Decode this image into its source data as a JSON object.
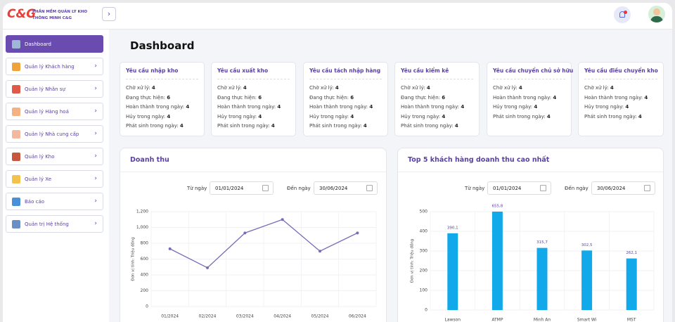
{
  "sidebar": {
    "logo": "C&G",
    "brand": [
      "PHẦN MỀM QUẢN LÝ KHO",
      "THÔNG MINH C&G"
    ],
    "menu": [
      "Dashboard",
      "Quản lý Khách hàng",
      "Quản lý Nhân sự",
      "Quản lý Hàng hoá",
      "Quản lý Nhà cung cấp",
      "Quản lý Kho",
      "Quản lý Xe",
      "Báo cáo",
      "Quản trị Hệ thống"
    ]
  },
  "page_title": "Dashboard",
  "cards": [
    {
      "title": "Yêu cầu nhập kho",
      "rows": [
        {
          "label": "Chờ xử lý:",
          "value": 4
        },
        {
          "label": "Đang thực hiện:",
          "value": 6
        },
        {
          "label": "Hoàn thành trong ngày:",
          "value": 4
        },
        {
          "label": "Hủy trong ngày:",
          "value": 4
        },
        {
          "label": "Phát sinh trong ngày:",
          "value": 4
        }
      ]
    },
    {
      "title": "Yêu cầu xuất kho",
      "rows": [
        {
          "label": "Chờ xử lý:",
          "value": 4
        },
        {
          "label": "Đang thực hiện:",
          "value": 6
        },
        {
          "label": "Hoàn thành trong ngày:",
          "value": 4
        },
        {
          "label": "Hủy trong ngày:",
          "value": 4
        },
        {
          "label": "Phát sinh trong ngày:",
          "value": 4
        }
      ]
    },
    {
      "title": "Yêu cầu tách nhập hàng",
      "rows": [
        {
          "label": "Chờ xử lý:",
          "value": 4
        },
        {
          "label": "Đang thực hiện:",
          "value": 6
        },
        {
          "label": "Hoàn thành trong ngày:",
          "value": 4
        },
        {
          "label": "Hủy trong ngày:",
          "value": 4
        },
        {
          "label": "Phát sinh trong ngày:",
          "value": 4
        }
      ]
    },
    {
      "title": "Yêu cầu kiểm kê",
      "rows": [
        {
          "label": "Chờ xử lý:",
          "value": 4
        },
        {
          "label": "Đang thực hiện:",
          "value": 6
        },
        {
          "label": "Hoàn thành trong ngày:",
          "value": 4
        },
        {
          "label": "Hủy trong ngày:",
          "value": 4
        },
        {
          "label": "Phát sinh trong ngày:",
          "value": 4
        }
      ]
    },
    {
      "title": "Yêu cầu chuyển chủ sở hữu",
      "rows": [
        {
          "label": "Chờ xử lý:",
          "value": 4
        },
        {
          "label": "Hoàn thành trong ngày:",
          "value": 4
        },
        {
          "label": "Hủy trong ngày:",
          "value": 4
        },
        {
          "label": "Phát sinh trong ngày:",
          "value": 4
        }
      ]
    },
    {
      "title": "Yêu cầu điều chuyển kho",
      "rows": [
        {
          "label": "Chờ xử lý:",
          "value": 4
        },
        {
          "label": "Hoàn thành trong ngày:",
          "value": 4
        },
        {
          "label": "Hủy trong ngày:",
          "value": 4
        },
        {
          "label": "Phát sinh trong ngày:",
          "value": 4
        }
      ]
    }
  ],
  "chart_data": [
    {
      "type": "line",
      "title": "Doanh thu",
      "filters": {
        "from_label": "Từ ngày",
        "from": "01/01/2024",
        "to_label": "Đến ngày",
        "to": "30/06/2024"
      },
      "y_label": "Đơn vị tính: Triệu đồng",
      "categories": [
        "01/2024",
        "02/2024",
        "03/2024",
        "04/2024",
        "05/2024",
        "06/2024"
      ],
      "values": [
        730,
        490,
        930,
        1100,
        700,
        930
      ],
      "color": "#7b6bb8",
      "ylim": [
        0,
        1200
      ],
      "yticks": [
        0,
        200,
        400,
        600,
        800,
        {
          "value": 1000,
          "label": "1,000"
        },
        {
          "value": 1200,
          "label": "1,200"
        }
      ],
      "grid": true
    },
    {
      "type": "bar",
      "title": "Top 5 khách hàng doanh thu cao nhất",
      "filters": {
        "from_label": "Từ ngày",
        "from": "01/01/2024",
        "to_label": "Đến ngày",
        "to": "30/06/2024"
      },
      "y_label": "Đơn vị tính: Triệu đồng",
      "categories": [
        "Lawson",
        "ATMP",
        "Minh An",
        "Smart Wi",
        "MST"
      ],
      "values": [
        390.1,
        655.8,
        315.7,
        302.5,
        262.1
      ],
      "value_labels": [
        "390,1",
        "655,8",
        "315,7",
        "302,5",
        "262,1"
      ],
      "color": "#12a9ea",
      "ylim": [
        0,
        500
      ],
      "yticks": [
        0,
        100,
        200,
        300,
        400,
        500
      ],
      "grid": true
    }
  ]
}
